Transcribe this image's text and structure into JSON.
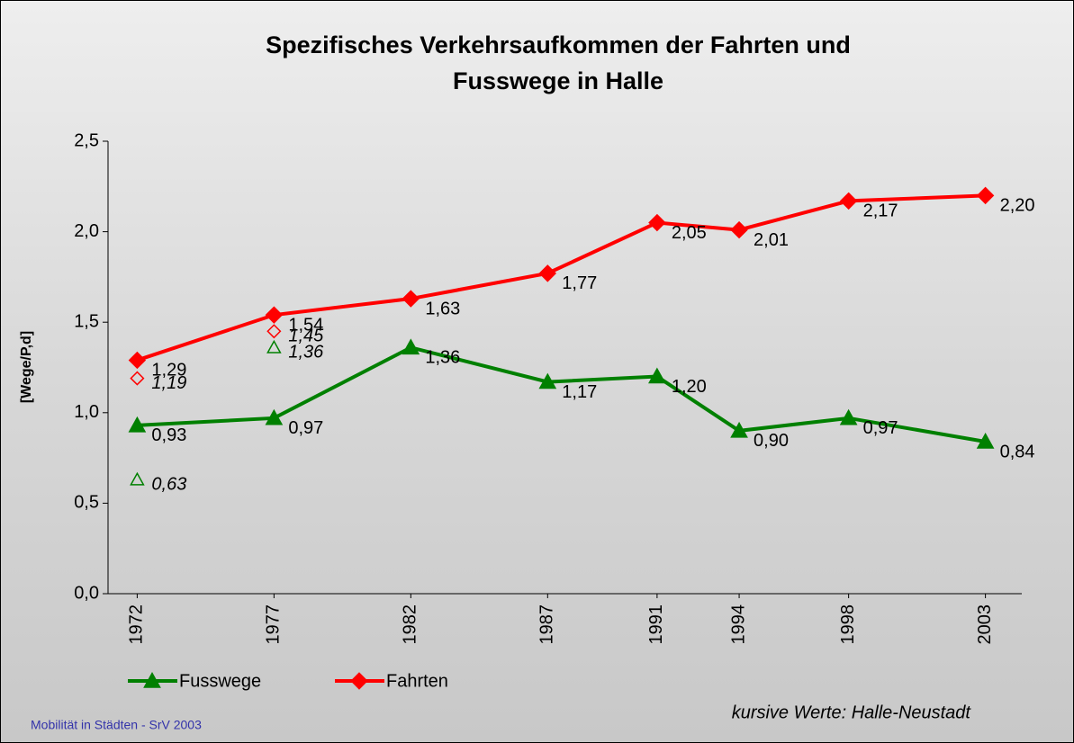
{
  "chart_data": {
    "type": "line",
    "title_lines": [
      "Spezifisches Verkehrsaufkommen der Fahrten und",
      "Fusswege in Halle"
    ],
    "y_label": "[Wege/P,d]",
    "x": [
      1972,
      1977,
      1982,
      1987,
      1991,
      1994,
      1998,
      2003
    ],
    "xlim": [
      1971,
      2004
    ],
    "ylim": [
      0,
      2.5
    ],
    "yticks": [
      {
        "value": 0,
        "label": "0,0"
      },
      {
        "value": 0.5,
        "label": "0,5"
      },
      {
        "value": 1,
        "label": "1,0"
      },
      {
        "value": 1.5,
        "label": "1,5"
      },
      {
        "value": 2,
        "label": "2,0"
      },
      {
        "value": 2.5,
        "label": "2,5"
      }
    ],
    "series": [
      {
        "name": "Fusswege",
        "color": "#008000",
        "marker": "triangle",
        "values": [
          0.93,
          0.97,
          1.36,
          1.17,
          1.2,
          0.9,
          0.97,
          0.84
        ],
        "value_labels": [
          "0,93",
          "0,97",
          "1,36",
          "1,17",
          "1,20",
          "0,90",
          "0,97",
          "0,84"
        ]
      },
      {
        "name": "Fahrten",
        "color": "#ff0000",
        "marker": "diamond",
        "values": [
          1.29,
          1.54,
          1.63,
          1.77,
          2.05,
          2.01,
          2.17,
          2.2
        ],
        "value_labels": [
          "1,29",
          "1,54",
          "1,63",
          "1,77",
          "2,05",
          "2,01",
          "2,17",
          "2,20"
        ]
      }
    ],
    "neustadt": [
      {
        "x": [
          1972,
          1977
        ],
        "color": "#008000",
        "marker": "triangle",
        "values": [
          0.63,
          1.36
        ],
        "value_labels": [
          "0,63",
          "1,36"
        ]
      },
      {
        "x": [
          1972,
          1977
        ],
        "color": "#ff0000",
        "marker": "diamond",
        "values": [
          1.19,
          1.45
        ],
        "value_labels": [
          "1,19",
          "1,45"
        ]
      }
    ],
    "note": "kursive Werte:  Halle-Neustadt",
    "footer": "Mobilität in Städten - SrV 2003"
  }
}
